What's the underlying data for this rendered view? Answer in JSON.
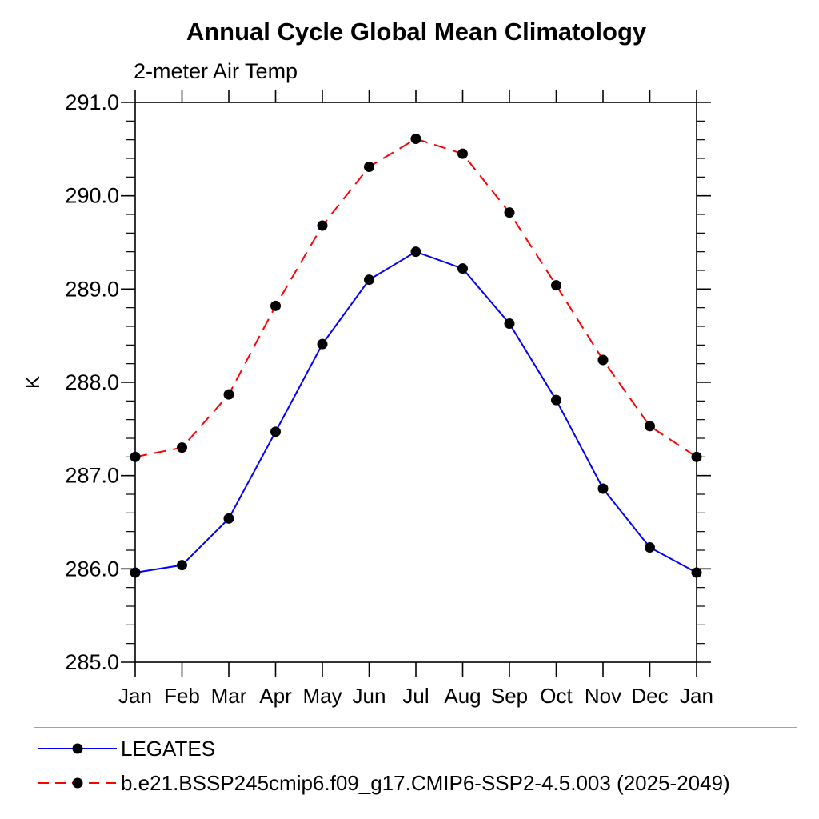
{
  "page": {
    "background": "#ffffff"
  },
  "chart_data": {
    "type": "line",
    "title": "Annual Cycle Global Mean Climatology",
    "subtitle": "2-meter Air Temp",
    "ylabel": "K",
    "xlabel": "",
    "x_categories": [
      "Jan",
      "Feb",
      "Mar",
      "Apr",
      "May",
      "Jun",
      "Jul",
      "Aug",
      "Sep",
      "Oct",
      "Nov",
      "Dec",
      "Jan"
    ],
    "ylim": [
      285.0,
      291.0
    ],
    "ytick_major_interval": 1.0,
    "ytick_minor_interval": 0.2,
    "ytick_labels": [
      "285.0",
      "286.0",
      "287.0",
      "288.0",
      "289.0",
      "290.0",
      "291.0"
    ],
    "grid": false,
    "axis_color": "#000000",
    "series": [
      {
        "name": "LEGATES",
        "line_color": "#0000ff",
        "line_style": "solid",
        "marker": "filled-circle",
        "marker_color": "#000000",
        "values": [
          285.96,
          286.04,
          286.54,
          287.47,
          288.41,
          289.1,
          289.4,
          289.22,
          288.63,
          287.81,
          286.86,
          286.23,
          285.96
        ]
      },
      {
        "name": "b.e21.BSSP245cmip6.f09_g17.CMIP6-SSP2-4.5.003 (2025-2049)",
        "line_color": "#ff0000",
        "line_style": "dashed",
        "marker": "filled-circle",
        "marker_color": "#000000",
        "values": [
          287.2,
          287.3,
          287.87,
          288.82,
          289.68,
          290.31,
          290.61,
          290.45,
          289.82,
          289.04,
          288.24,
          287.53,
          287.2
        ]
      }
    ],
    "legend": {
      "position": "bottom-left",
      "border_color": "#a3a3a3"
    }
  }
}
